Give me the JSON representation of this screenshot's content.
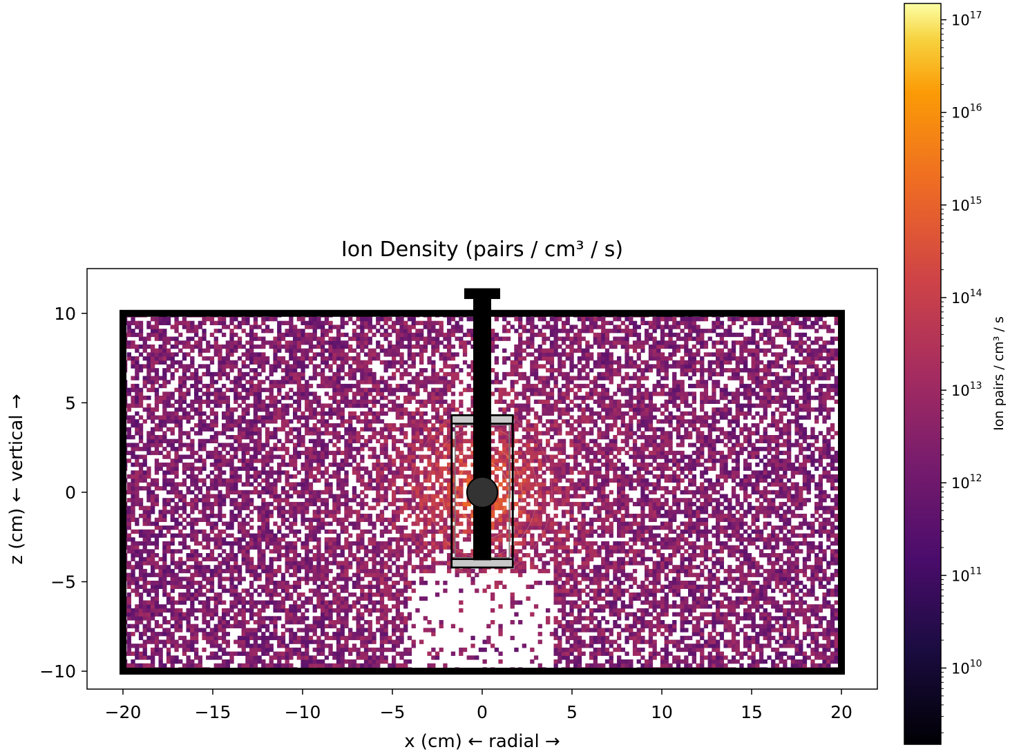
{
  "chart_data": {
    "type": "heatmap",
    "title": "Ion Density (pairs / cm³ / s)",
    "xlabel": "x (cm)  ← radial →",
    "ylabel": "z (cm)  ← vertical →",
    "xlim": [
      -22,
      22
    ],
    "ylim": [
      -11,
      12.5
    ],
    "xticks": [
      -20,
      -15,
      -10,
      -5,
      0,
      5,
      10,
      15,
      20
    ],
    "xtick_labels": [
      "−20",
      "−15",
      "−10",
      "−5",
      "0",
      "5",
      "10",
      "15",
      "20"
    ],
    "yticks": [
      -10,
      -5,
      0,
      5,
      10
    ],
    "ytick_labels": [
      "−10",
      "−5",
      "0",
      "5",
      "10"
    ],
    "grid": false,
    "colormap": "inferno",
    "color_scale": "log",
    "colorbar": {
      "label": "Ion pairs / cm³ / s",
      "range": [
        1500000000.0,
        1.5e+17
      ],
      "ticks": [
        10000000000.0,
        100000000000.0,
        1000000000000.0,
        10000000000000.0,
        100000000000000.0,
        1000000000000000.0,
        1e+16,
        1e+17
      ],
      "tick_bases": [
        "10",
        "10",
        "10",
        "10",
        "10",
        "10",
        "10",
        "10"
      ],
      "tick_exponents": [
        "10",
        "11",
        "12",
        "13",
        "14",
        "15",
        "16",
        "17"
      ]
    },
    "field_extent": {
      "x": [
        -20,
        20
      ],
      "z": [
        -10,
        10
      ]
    },
    "field_description": {
      "source_position": [
        0,
        0
      ],
      "peak_log10": 15.3,
      "background_log10": 12.3,
      "empty_fraction": 0.35
    },
    "geometry": {
      "chamber": {
        "x": [
          -20,
          20
        ],
        "z": [
          -10,
          10
        ]
      },
      "stem": {
        "x": [
          -0.5,
          0.5
        ],
        "z": [
          -3.8,
          11.2
        ]
      },
      "cap": {
        "x": [
          -1.0,
          1.0
        ],
        "z": [
          10.8,
          11.4
        ]
      },
      "holder": {
        "x": [
          -1.7,
          1.7
        ],
        "z": [
          -4.2,
          4.3
        ]
      },
      "source_sphere": {
        "center": [
          0,
          0
        ],
        "radius": 0.85
      }
    }
  }
}
